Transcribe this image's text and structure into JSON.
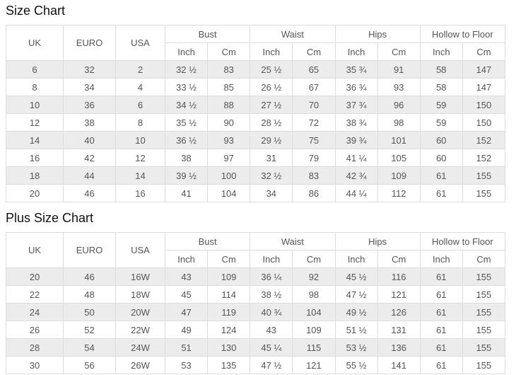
{
  "colors": {
    "stripe_row": "#ececec",
    "table_border": "#dddddd",
    "cell_text": "#555555",
    "title_text": "#111111",
    "background": "#ffffff"
  },
  "chart_data": [
    {
      "type": "table",
      "title": "Size Chart",
      "plain_columns": [
        "UK",
        "EURO",
        "USA"
      ],
      "groups": [
        {
          "label": "Bust",
          "sub": [
            "Inch",
            "Cm"
          ]
        },
        {
          "label": "Waist",
          "sub": [
            "Inch",
            "Cm"
          ]
        },
        {
          "label": "Hips",
          "sub": [
            "Inch",
            "Cm"
          ]
        },
        {
          "label": "Hollow to Floor",
          "sub": [
            "Inch",
            "Cm"
          ]
        }
      ],
      "rows": [
        [
          "6",
          "32",
          "2",
          "32 ½",
          "83",
          "25 ½",
          "65",
          "35 ¾",
          "91",
          "58",
          "147"
        ],
        [
          "8",
          "34",
          "4",
          "33 ½",
          "85",
          "26 ½",
          "67",
          "36 ¾",
          "93",
          "58",
          "147"
        ],
        [
          "10",
          "36",
          "6",
          "34 ½",
          "88",
          "27 ½",
          "70",
          "37 ¾",
          "96",
          "59",
          "150"
        ],
        [
          "12",
          "38",
          "8",
          "35 ½",
          "90",
          "28 ½",
          "72",
          "38 ¾",
          "98",
          "59",
          "150"
        ],
        [
          "14",
          "40",
          "10",
          "36 ½",
          "93",
          "29 ½",
          "75",
          "39 ¾",
          "101",
          "60",
          "152"
        ],
        [
          "16",
          "42",
          "12",
          "38",
          "97",
          "31",
          "79",
          "41 ¼",
          "105",
          "60",
          "152"
        ],
        [
          "18",
          "44",
          "14",
          "39 ½",
          "100",
          "32 ½",
          "83",
          "42 ¾",
          "109",
          "61",
          "155"
        ],
        [
          "20",
          "46",
          "16",
          "41",
          "104",
          "34",
          "86",
          "44 ¼",
          "112",
          "61",
          "155"
        ]
      ]
    },
    {
      "type": "table",
      "title": "Plus Size Chart",
      "plain_columns": [
        "UK",
        "EURO",
        "USA"
      ],
      "groups": [
        {
          "label": "Bust",
          "sub": [
            "Inch",
            "Cm"
          ]
        },
        {
          "label": "Waist",
          "sub": [
            "Inch",
            "Cm"
          ]
        },
        {
          "label": "Hips",
          "sub": [
            "Inch",
            "Cm"
          ]
        },
        {
          "label": "Hollow to Floor",
          "sub": [
            "Inch",
            "Cm"
          ]
        }
      ],
      "rows": [
        [
          "20",
          "46",
          "16W",
          "43",
          "109",
          "36 ¼",
          "92",
          "45 ½",
          "116",
          "61",
          "155"
        ],
        [
          "22",
          "48",
          "18W",
          "45",
          "114",
          "38 ½",
          "98",
          "47 ½",
          "121",
          "61",
          "155"
        ],
        [
          "24",
          "50",
          "20W",
          "47",
          "119",
          "40 ¾",
          "104",
          "49 ½",
          "126",
          "61",
          "155"
        ],
        [
          "26",
          "52",
          "22W",
          "49",
          "124",
          "43",
          "109",
          "51 ½",
          "131",
          "61",
          "155"
        ],
        [
          "28",
          "54",
          "24W",
          "51",
          "130",
          "45 ¼",
          "115",
          "53 ½",
          "136",
          "61",
          "155"
        ],
        [
          "30",
          "56",
          "26W",
          "53",
          "135",
          "47 ½",
          "121",
          "55 ½",
          "141",
          "61",
          "155"
        ]
      ]
    }
  ]
}
